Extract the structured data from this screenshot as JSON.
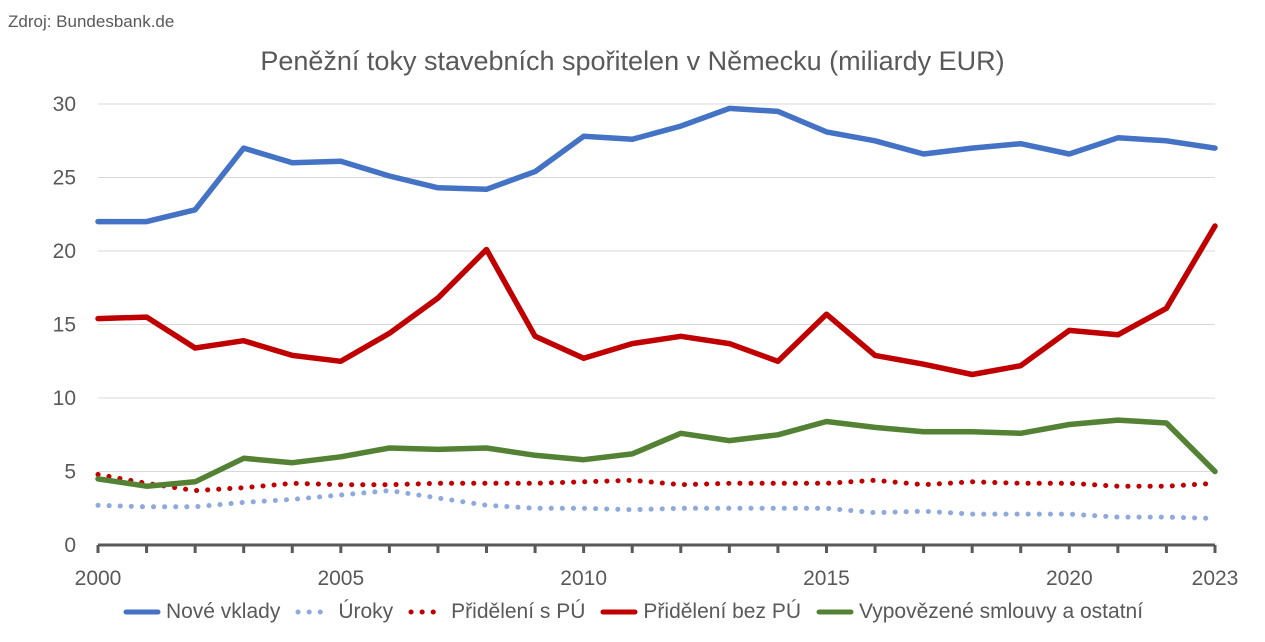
{
  "source": "Zdroj: Bundesbank.de",
  "chart_data": {
    "type": "line",
    "title": "Peněžní toky stavebních spořitelen v Německu  (miliardy EUR)",
    "x": [
      2000,
      2001,
      2002,
      2003,
      2004,
      2005,
      2006,
      2007,
      2008,
      2009,
      2010,
      2011,
      2012,
      2013,
      2014,
      2015,
      2016,
      2017,
      2018,
      2019,
      2020,
      2021,
      2022,
      2023
    ],
    "x_tick_labels": [
      "2000",
      "2005",
      "2010",
      "2015",
      "2020",
      "2023"
    ],
    "y_tick_labels": [
      "0",
      "5",
      "10",
      "15",
      "20",
      "25",
      "30"
    ],
    "ylim": [
      0,
      30
    ],
    "grid": "horizontal",
    "legend_position": "bottom",
    "series": [
      {
        "name": "Nové vklady",
        "color": "#4472C4",
        "style": "solid",
        "values": [
          22.0,
          22.0,
          22.8,
          27.0,
          26.0,
          26.1,
          25.1,
          24.3,
          24.2,
          25.4,
          27.8,
          27.6,
          28.5,
          29.7,
          29.5,
          28.1,
          27.5,
          26.6,
          27.0,
          27.3,
          26.6,
          27.7,
          27.5,
          27.0
        ]
      },
      {
        "name": "Úroky",
        "color": "#8EA9DB",
        "style": "dotted",
        "values": [
          2.7,
          2.6,
          2.6,
          2.9,
          3.1,
          3.4,
          3.7,
          3.2,
          2.7,
          2.5,
          2.5,
          2.4,
          2.5,
          2.5,
          2.5,
          2.5,
          2.2,
          2.3,
          2.1,
          2.1,
          2.1,
          1.9,
          1.9,
          1.8
        ]
      },
      {
        "name": "Přidělení s PÚ",
        "color": "#C00000",
        "style": "dotted",
        "values": [
          4.8,
          4.2,
          3.7,
          3.9,
          4.2,
          4.1,
          4.1,
          4.2,
          4.2,
          4.2,
          4.3,
          4.4,
          4.1,
          4.2,
          4.2,
          4.2,
          4.4,
          4.1,
          4.3,
          4.2,
          4.2,
          4.0,
          4.0,
          4.2
        ]
      },
      {
        "name": "Přidělení bez PÚ",
        "color": "#C00000",
        "style": "solid",
        "values": [
          15.4,
          15.5,
          13.4,
          13.9,
          12.9,
          12.5,
          14.4,
          16.8,
          20.1,
          14.2,
          12.7,
          13.7,
          14.2,
          13.7,
          12.5,
          15.7,
          12.9,
          12.3,
          11.6,
          12.2,
          14.6,
          14.3,
          16.1,
          21.7
        ]
      },
      {
        "name": "Vypovězené smlouvy a ostatní",
        "color": "#548235",
        "style": "solid",
        "values": [
          4.5,
          4.0,
          4.3,
          5.9,
          5.6,
          6.0,
          6.6,
          6.5,
          6.6,
          6.1,
          5.8,
          6.2,
          7.6,
          7.1,
          7.5,
          8.4,
          8.0,
          7.7,
          7.7,
          7.6,
          8.2,
          8.5,
          8.3,
          5.0
        ]
      }
    ]
  }
}
